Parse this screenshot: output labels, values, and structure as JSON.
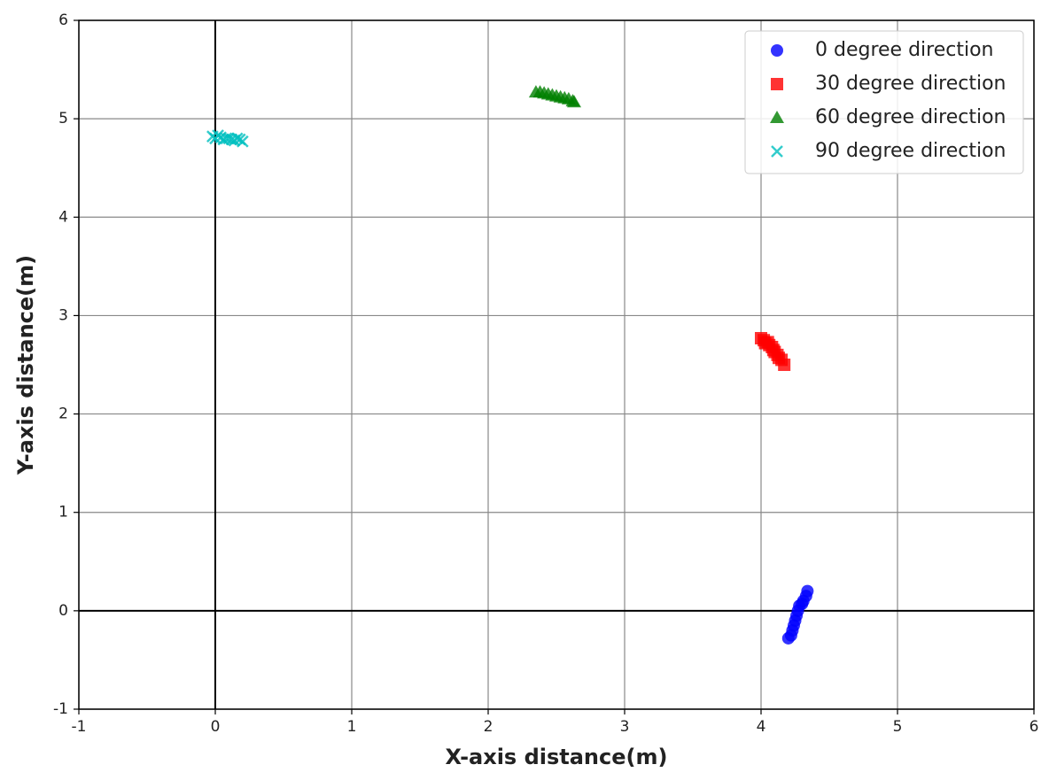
{
  "chart_data": {
    "type": "scatter",
    "x_label": "X-axis distance(m)",
    "y_label": "Y-axis distance(m)",
    "xlim": [
      -1,
      6
    ],
    "xticks": [
      -1,
      0,
      1,
      2,
      3,
      4,
      5,
      6
    ],
    "ylim": [
      -1,
      6
    ],
    "yticks": [
      -1,
      0,
      1,
      2,
      3,
      4,
      5,
      6
    ],
    "grid": true,
    "legend_position": "upper-right",
    "series": [
      {
        "name": "0 degree direction",
        "color": "#0000ff",
        "marker": "o",
        "x": [
          4.2,
          4.22,
          4.23,
          4.24,
          4.25,
          4.26,
          4.27,
          4.28,
          4.3,
          4.31,
          4.33,
          4.34
        ],
        "values": [
          -0.28,
          -0.25,
          -0.2,
          -0.15,
          -0.1,
          -0.05,
          0.0,
          0.05,
          0.07,
          0.1,
          0.15,
          0.2
        ]
      },
      {
        "name": "30 degree direction",
        "color": "#ff0000",
        "marker": "s",
        "x": [
          4.0,
          4.02,
          4.03,
          4.05,
          4.06,
          4.08,
          4.09,
          4.1,
          4.12,
          4.13,
          4.15,
          4.17
        ],
        "values": [
          2.77,
          2.75,
          2.72,
          2.73,
          2.7,
          2.68,
          2.65,
          2.63,
          2.6,
          2.57,
          2.55,
          2.5
        ]
      },
      {
        "name": "60 degree direction",
        "color": "#008000",
        "marker": "^",
        "x": [
          2.35,
          2.38,
          2.41,
          2.44,
          2.47,
          2.5,
          2.53,
          2.56,
          2.59,
          2.62,
          2.63
        ],
        "values": [
          5.27,
          5.27,
          5.26,
          5.25,
          5.24,
          5.23,
          5.22,
          5.21,
          5.2,
          5.18,
          5.17
        ]
      },
      {
        "name": "90 degree direction",
        "color": "#00bfbf",
        "marker": "x",
        "x": [
          -0.02,
          0.0,
          0.02,
          0.04,
          0.06,
          0.08,
          0.1,
          0.12,
          0.14,
          0.16,
          0.18,
          0.2
        ],
        "values": [
          4.82,
          4.8,
          4.83,
          4.81,
          4.79,
          4.8,
          4.8,
          4.79,
          4.78,
          4.8,
          4.79,
          4.77
        ]
      }
    ]
  }
}
